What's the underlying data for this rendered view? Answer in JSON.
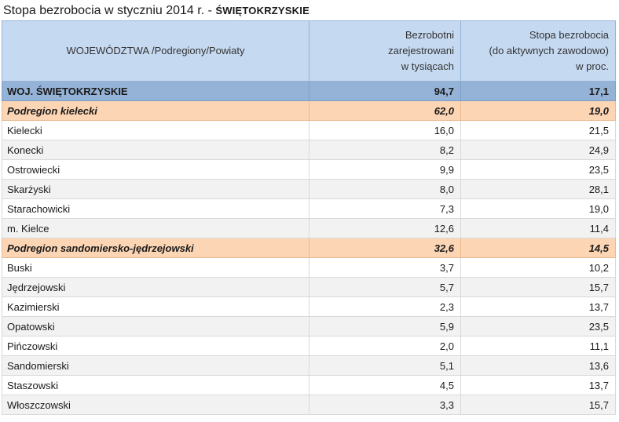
{
  "title": {
    "main": "Stopa bezrobocia w styczniu 2014 r. - ",
    "region": "ŚWIĘTOKRZYSKIE"
  },
  "headers": {
    "col1": "WOJEWÓDZTWA /Podregiony/Powiaty",
    "col2": "Bezrobotni\nzarejestrowani\nw tysiącach",
    "col3": "Stopa bezrobocia\n(do aktywnych zawodowo)\nw proc."
  },
  "rows": [
    {
      "type": "voiv",
      "name": "WOJ. ŚWIĘTOKRZYSKIE",
      "unemployed": "94,7",
      "rate": "17,1"
    },
    {
      "type": "sub",
      "name": "Podregion kielecki",
      "unemployed": "62,0",
      "rate": "19,0"
    },
    {
      "type": "pov",
      "name": "Kielecki",
      "unemployed": "16,0",
      "rate": "21,5"
    },
    {
      "type": "pov",
      "name": "Konecki",
      "unemployed": "8,2",
      "rate": "24,9"
    },
    {
      "type": "pov",
      "name": "Ostrowiecki",
      "unemployed": "9,9",
      "rate": "23,5"
    },
    {
      "type": "pov",
      "name": "Skarżyski",
      "unemployed": "8,0",
      "rate": "28,1"
    },
    {
      "type": "pov",
      "name": "Starachowicki",
      "unemployed": "7,3",
      "rate": "19,0"
    },
    {
      "type": "pov",
      "name": "m. Kielce",
      "unemployed": "12,6",
      "rate": "11,4"
    },
    {
      "type": "sub",
      "name": "Podregion sandomiersko-jędrzejowski",
      "unemployed": "32,6",
      "rate": "14,5"
    },
    {
      "type": "pov",
      "name": "Buski",
      "unemployed": "3,7",
      "rate": "10,2"
    },
    {
      "type": "pov",
      "name": "Jędrzejowski",
      "unemployed": "5,7",
      "rate": "15,7"
    },
    {
      "type": "pov",
      "name": "Kazimierski",
      "unemployed": "2,3",
      "rate": "13,7"
    },
    {
      "type": "pov",
      "name": "Opatowski",
      "unemployed": "5,9",
      "rate": "23,5"
    },
    {
      "type": "pov",
      "name": "Pińczowski",
      "unemployed": "2,0",
      "rate": "11,1"
    },
    {
      "type": "pov",
      "name": "Sandomierski",
      "unemployed": "5,1",
      "rate": "13,6"
    },
    {
      "type": "pov",
      "name": "Staszowski",
      "unemployed": "4,5",
      "rate": "13,7"
    },
    {
      "type": "pov",
      "name": "Włoszczowski",
      "unemployed": "3,3",
      "rate": "15,7"
    }
  ]
}
